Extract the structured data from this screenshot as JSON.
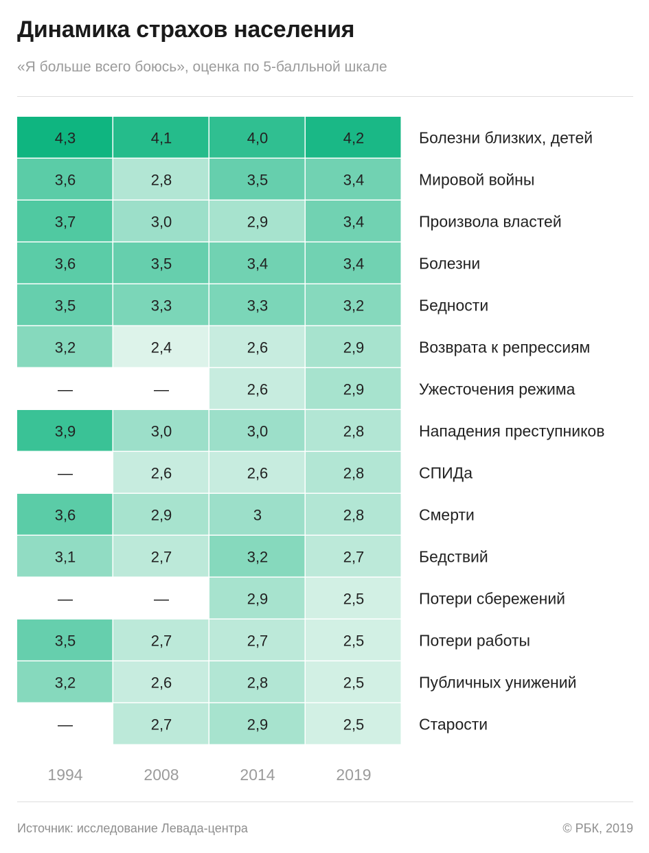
{
  "title": "Динамика страхов населения",
  "subtitle": "«Я больше всего боюсь», оценка по 5-балльной шкале",
  "source": "Источник: исследование Левада-центра",
  "copyright": "© РБК, 2019",
  "colors": {
    "cell_low": "#ddf3ea",
    "cell_high": "#0fb580",
    "text": "#222222",
    "axis": "#9b9b9b"
  },
  "chart_data": {
    "type": "heatmap",
    "title": "Динамика страхов населения",
    "subtitle": "«Я больше всего боюсь», оценка по 5-балльной шкале",
    "x": [
      "1994",
      "2008",
      "2014",
      "2019"
    ],
    "y": [
      "Болезни близких, детей",
      "Мировой войны",
      "Произвола властей",
      "Болезни",
      "Бедности",
      "Возврата к репрессиям",
      "Ужесточения режима",
      "Нападения преступников",
      "СПИДа",
      "Смерти",
      "Бедствий",
      "Потери сбережений",
      "Потери работы",
      "Публичных унижений",
      "Старости"
    ],
    "values": [
      [
        4.3,
        4.1,
        4.0,
        4.2
      ],
      [
        3.6,
        2.8,
        3.5,
        3.4
      ],
      [
        3.7,
        3.0,
        2.9,
        3.4
      ],
      [
        3.6,
        3.5,
        3.4,
        3.4
      ],
      [
        3.5,
        3.3,
        3.3,
        3.2
      ],
      [
        3.2,
        2.4,
        2.6,
        2.9
      ],
      [
        null,
        null,
        2.6,
        2.9
      ],
      [
        3.9,
        3.0,
        3.0,
        2.8
      ],
      [
        null,
        2.6,
        2.6,
        2.8
      ],
      [
        3.6,
        2.9,
        3.0,
        2.8
      ],
      [
        3.1,
        2.7,
        3.2,
        2.7
      ],
      [
        null,
        null,
        2.9,
        2.5
      ],
      [
        3.5,
        2.7,
        2.7,
        2.5
      ],
      [
        3.2,
        2.6,
        2.8,
        2.5
      ],
      [
        null,
        2.7,
        2.9,
        2.5
      ]
    ],
    "labels": [
      [
        "4,3",
        "4,1",
        "4,0",
        "4,2"
      ],
      [
        "3,6",
        "2,8",
        "3,5",
        "3,4"
      ],
      [
        "3,7",
        "3,0",
        "2,9",
        "3,4"
      ],
      [
        "3,6",
        "3,5",
        "3,4",
        "3,4"
      ],
      [
        "3,5",
        "3,3",
        "3,3",
        "3,2"
      ],
      [
        "3,2",
        "2,4",
        "2,6",
        "2,9"
      ],
      [
        "—",
        "—",
        "2,6",
        "2,9"
      ],
      [
        "3,9",
        "3,0",
        "3,0",
        "2,8"
      ],
      [
        "—",
        "2,6",
        "2,6",
        "2,8"
      ],
      [
        "3,6",
        "2,9",
        "3",
        "2,8"
      ],
      [
        "3,1",
        "2,7",
        "3,2",
        "2,7"
      ],
      [
        "—",
        "—",
        "2,9",
        "2,5"
      ],
      [
        "3,5",
        "2,7",
        "2,7",
        "2,5"
      ],
      [
        "3,2",
        "2,6",
        "2,8",
        "2,5"
      ],
      [
        "—",
        "2,7",
        "2,9",
        "2,5"
      ]
    ],
    "missing_label": "—",
    "color_range": [
      2.4,
      4.3
    ]
  }
}
